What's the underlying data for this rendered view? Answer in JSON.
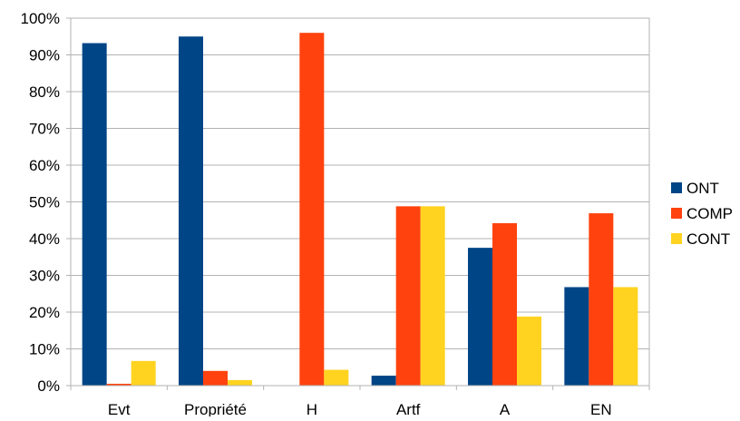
{
  "chart_data": {
    "type": "bar",
    "categories": [
      "Evt",
      "Propriété",
      "H",
      "Artf",
      "A",
      "EN"
    ],
    "series": [
      {
        "name": "ONT",
        "color": "#004586",
        "values": [
          93.2,
          95.0,
          0.0,
          2.7,
          37.5,
          26.8
        ]
      },
      {
        "name": "COMP",
        "color": "#ff420e",
        "values": [
          0.5,
          4.0,
          96.0,
          48.8,
          44.2,
          46.9
        ]
      },
      {
        "name": "CONT",
        "color": "#ffd320",
        "values": [
          6.7,
          1.5,
          4.3,
          48.8,
          18.8,
          26.8
        ]
      }
    ],
    "ylim": [
      0,
      100
    ],
    "yticks": [
      "0%",
      "10%",
      "20%",
      "30%",
      "40%",
      "50%",
      "60%",
      "70%",
      "80%",
      "90%",
      "100%"
    ],
    "grid": true,
    "legend_position": "right"
  }
}
